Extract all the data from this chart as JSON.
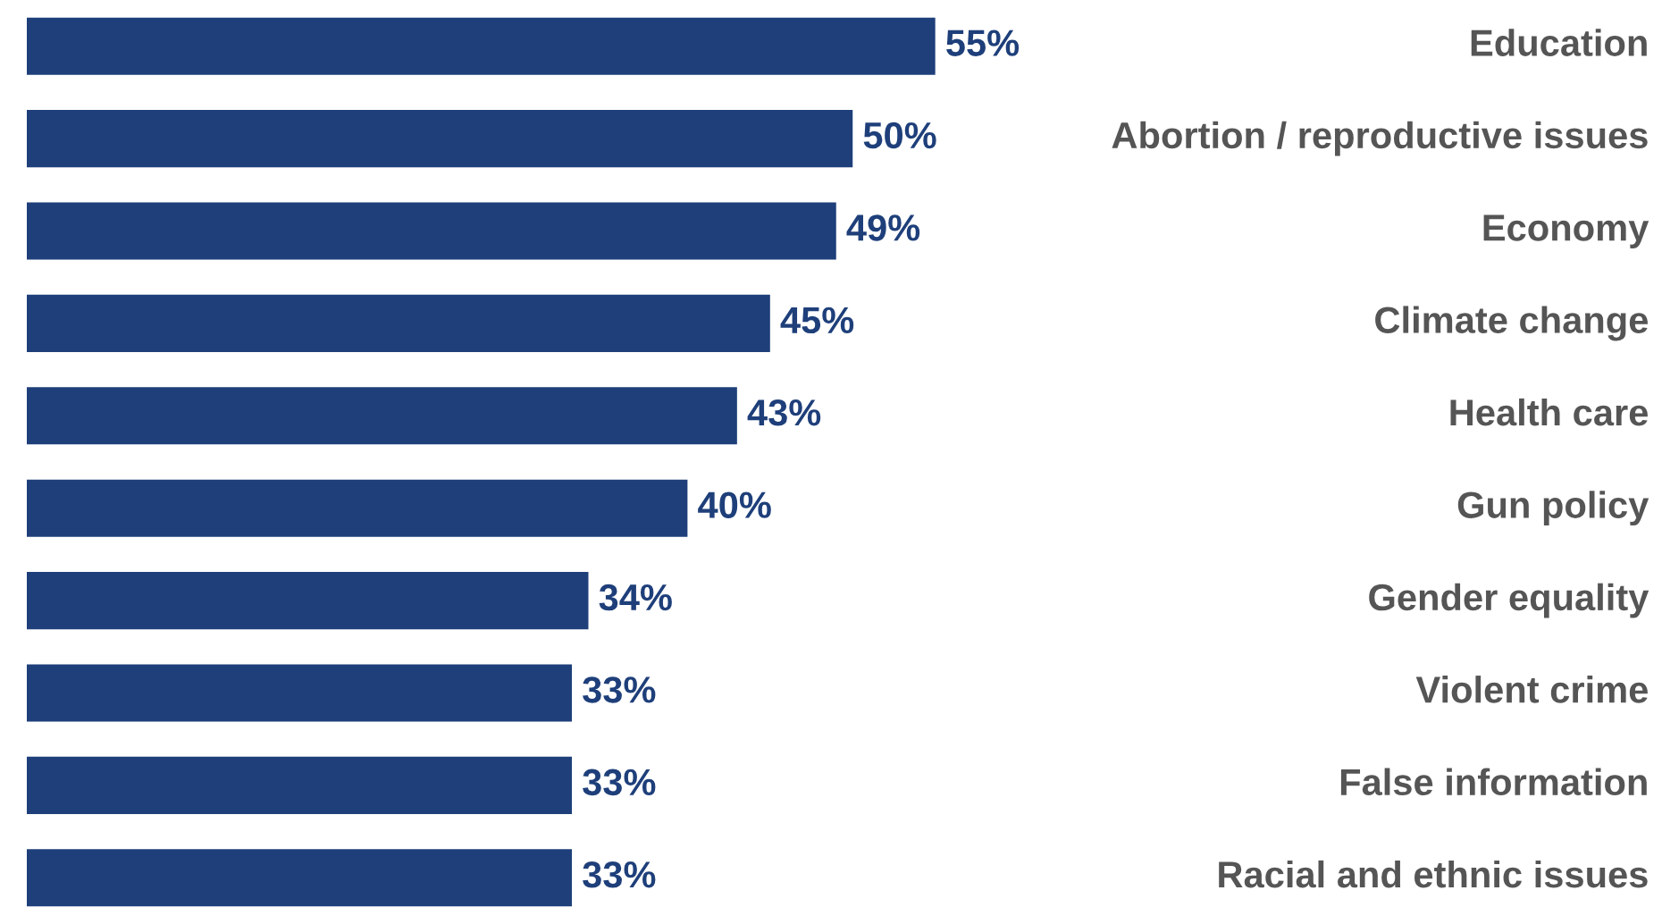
{
  "chart_data": {
    "type": "bar",
    "orientation": "horizontal",
    "categories": [
      "Education",
      "Abortion / reproductive issues",
      "Economy",
      "Climate change",
      "Health care",
      "Gun policy",
      "Gender equality",
      "Violent crime",
      "False information",
      "Racial and ethnic issues"
    ],
    "values": [
      55,
      50,
      49,
      45,
      43,
      40,
      34,
      33,
      33,
      33
    ],
    "value_labels": [
      "55%",
      "50%",
      "49%",
      "45%",
      "43%",
      "40%",
      "34%",
      "33%",
      "33%",
      "33%"
    ],
    "color": "#1e3f7a"
  }
}
